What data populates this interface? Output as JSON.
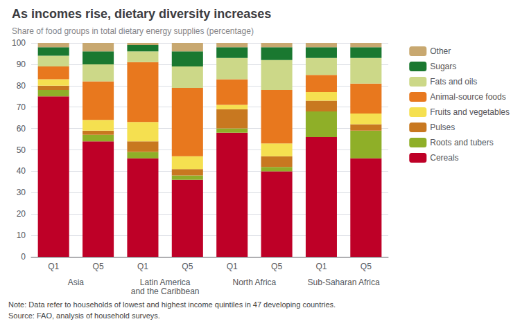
{
  "chart_data": {
    "type": "bar",
    "title": "As incomes rise, dietary diversity increases",
    "subtitle": "Share of food groups in total dietary energy supplies (percentage)",
    "note": "Note: Data refer to households of lowest and highest income quintiles in 47 developing countries.",
    "source": "Source: FAO, analysis of household surveys.",
    "categories": [
      "Q1",
      "Q5",
      "Q1",
      "Q5",
      "Q1",
      "Q5",
      "Q1",
      "Q5"
    ],
    "group_labels": [
      "Asia",
      "Latin America\nand the Caribbean",
      "North Africa",
      "Sub-Saharan Africa"
    ],
    "series": [
      {
        "name": "Cereals",
        "color": "#be0027",
        "values": [
          75,
          54,
          46,
          36,
          58,
          40,
          56,
          46
        ]
      },
      {
        "name": "Roots and tubers",
        "color": "#8faf28",
        "values": [
          3,
          3,
          3,
          2,
          2,
          2,
          12,
          13
        ]
      },
      {
        "name": "Pulses",
        "color": "#c87820",
        "values": [
          2,
          2,
          5,
          3,
          9,
          5,
          5,
          3
        ]
      },
      {
        "name": "Fruits and vegetables",
        "color": "#f5e050",
        "values": [
          3,
          5,
          9,
          6,
          2,
          6,
          4,
          5
        ]
      },
      {
        "name": "Animal-source foods",
        "color": "#e8781e",
        "values": [
          6,
          18,
          28,
          32,
          12,
          25,
          8,
          14
        ]
      },
      {
        "name": "Fats and oils",
        "color": "#ccd888",
        "values": [
          5,
          8,
          5,
          10,
          10,
          14,
          8,
          12
        ]
      },
      {
        "name": "Sugars",
        "color": "#1a7830",
        "values": [
          4,
          6,
          3,
          7,
          5,
          6,
          5,
          5
        ]
      },
      {
        "name": "Other",
        "color": "#c8a870",
        "values": [
          2,
          4,
          1,
          4,
          2,
          2,
          2,
          2
        ]
      }
    ],
    "stacked": true,
    "ylim": [
      0,
      100
    ],
    "yticks": [
      0,
      10,
      20,
      30,
      40,
      50,
      60,
      70,
      80,
      90,
      100
    ],
    "grid": true,
    "legend": "right"
  }
}
